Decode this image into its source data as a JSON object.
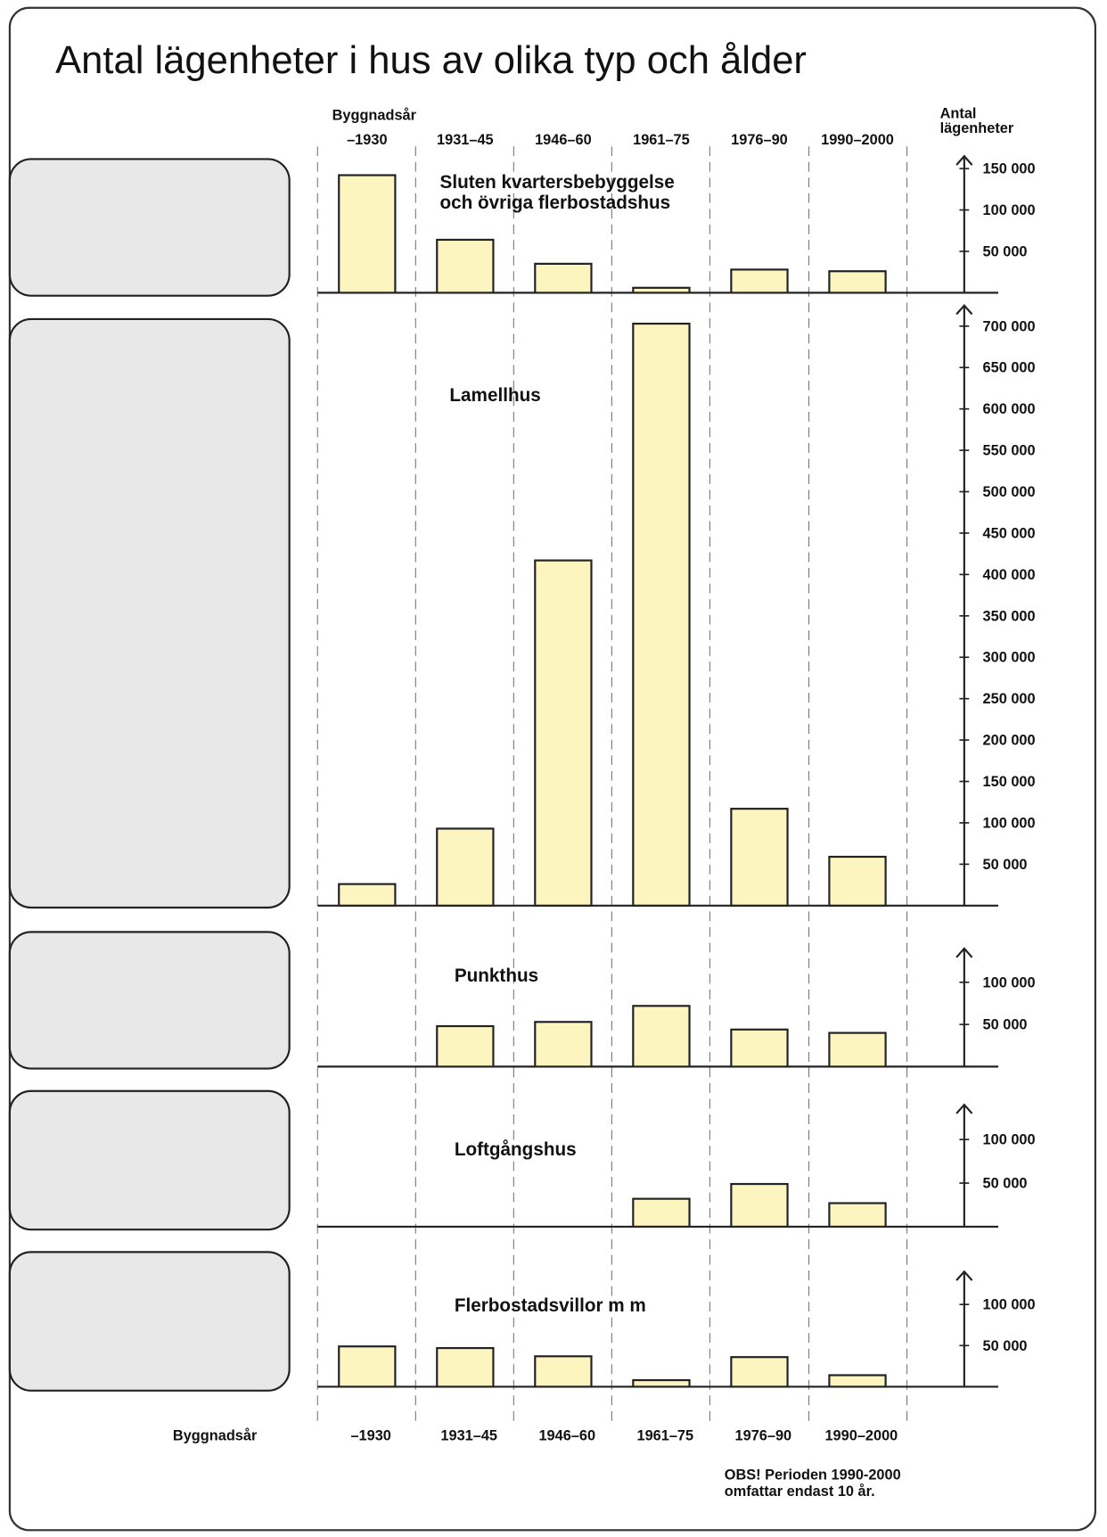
{
  "title": "Antal lägenheter i hus av olika typ och ålder",
  "x_label_top": "Byggnadsår",
  "y_label": [
    "Antal",
    "lägenheter"
  ],
  "categories": [
    "–1930",
    "1931–45",
    "1946–60",
    "1961–75",
    "1976–90",
    "1990–2000"
  ],
  "x_label_bottom": "Byggnadsår",
  "note": [
    "OBS! Perioden 1990-2000",
    "omfattar endast 10 år."
  ],
  "chart_data": [
    {
      "type": "bar",
      "title": [
        "Sluten kvartersbebyggelse",
        "och övriga flerbostadshus"
      ],
      "color": "#fdf5c0",
      "values": [
        142000,
        64000,
        35000,
        6000,
        28000,
        26000
      ],
      "ylim": [
        0,
        165000
      ],
      "yticks": [
        {
          "value": 50000,
          "label": "50 000"
        },
        {
          "value": 100000,
          "label": "100 000"
        },
        {
          "value": 150000,
          "label": "150 000"
        }
      ]
    },
    {
      "type": "bar",
      "title": [
        "Lamellhus"
      ],
      "color": "#fdf5c0",
      "values": [
        26000,
        93000,
        417000,
        703000,
        117000,
        59000
      ],
      "ylim": [
        0,
        725000
      ],
      "yticks": [
        {
          "value": 50000,
          "label": "50 000"
        },
        {
          "value": 100000,
          "label": "100 000"
        },
        {
          "value": 150000,
          "label": "150 000"
        },
        {
          "value": 200000,
          "label": "200 000"
        },
        {
          "value": 250000,
          "label": "250 000"
        },
        {
          "value": 300000,
          "label": "300 000"
        },
        {
          "value": 350000,
          "label": "350 000"
        },
        {
          "value": 400000,
          "label": "400 000"
        },
        {
          "value": 450000,
          "label": "450 000"
        },
        {
          "value": 500000,
          "label": "500 000"
        },
        {
          "value": 550000,
          "label": "550 000"
        },
        {
          "value": 600000,
          "label": "600 000"
        },
        {
          "value": 650000,
          "label": "650 000"
        },
        {
          "value": 700000,
          "label": "700 000"
        }
      ]
    },
    {
      "type": "bar",
      "title": [
        "Punkthus"
      ],
      "color": "#fdf5c0",
      "values": [
        null,
        48000,
        53000,
        72000,
        44000,
        40000
      ],
      "ylim": [
        0,
        140000
      ],
      "yticks": [
        {
          "value": 50000,
          "label": "50 000"
        },
        {
          "value": 100000,
          "label": "100 000"
        }
      ]
    },
    {
      "type": "bar",
      "title": [
        "Loftgångshus"
      ],
      "color": "#fdf5c0",
      "values": [
        null,
        null,
        null,
        32000,
        49000,
        27000
      ],
      "ylim": [
        0,
        140000
      ],
      "yticks": [
        {
          "value": 50000,
          "label": "50 000"
        },
        {
          "value": 100000,
          "label": "100 000"
        }
      ]
    },
    {
      "type": "bar",
      "title": [
        "Flerbostadsvillor m m"
      ],
      "color": "#fdf5c0",
      "values": [
        49000,
        47000,
        37000,
        8000,
        36000,
        14000
      ],
      "ylim": [
        0,
        140000
      ],
      "yticks": [
        {
          "value": 50000,
          "label": "50 000"
        },
        {
          "value": 100000,
          "label": "100 000"
        }
      ]
    }
  ]
}
